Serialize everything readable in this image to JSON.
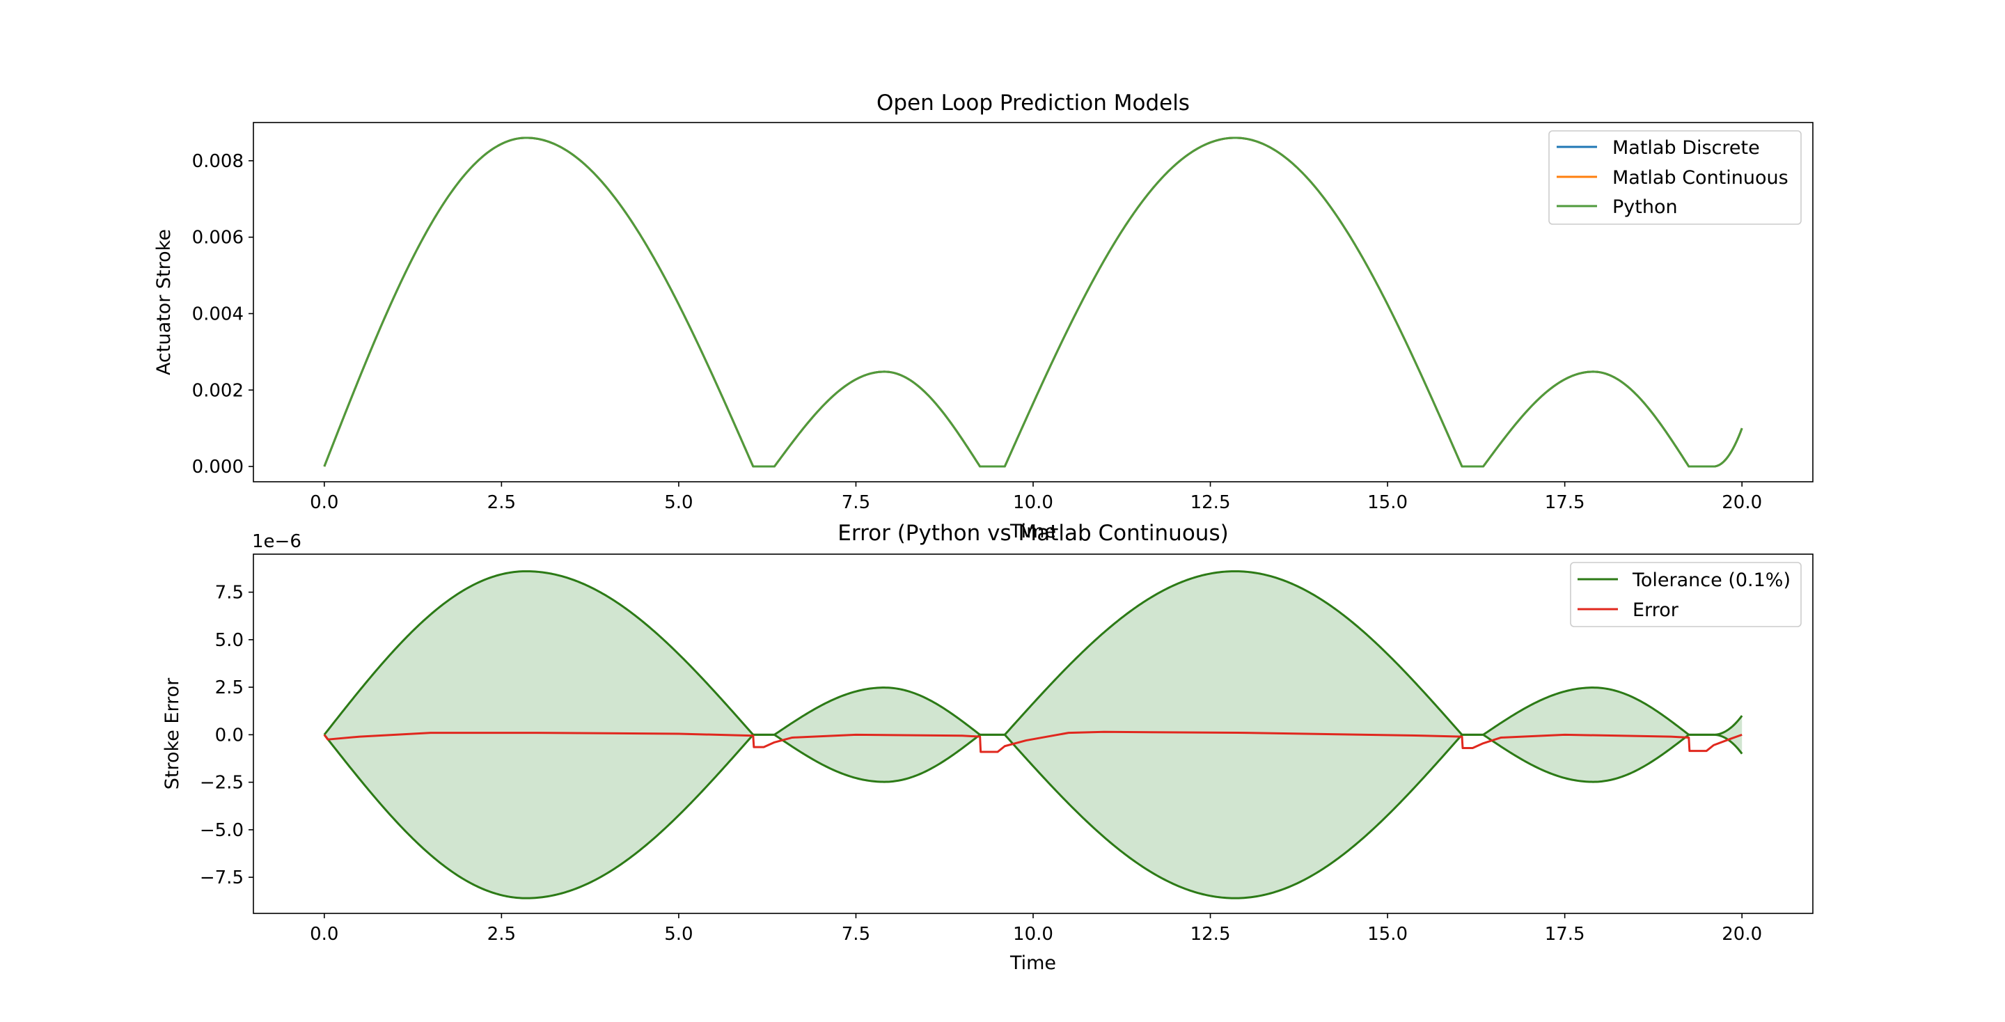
{
  "chart_data": [
    {
      "type": "line",
      "title": "Open Loop Prediction Models",
      "xlabel": "Time",
      "ylabel": "Actuator Stroke",
      "xlim": [
        -1.0,
        21.0
      ],
      "ylim": [
        -0.0004,
        0.009
      ],
      "xticks": [
        0.0,
        2.5,
        5.0,
        7.5,
        10.0,
        12.5,
        15.0,
        17.5,
        20.0
      ],
      "xtick_labels": [
        "0.0",
        "2.5",
        "5.0",
        "7.5",
        "10.0",
        "12.5",
        "15.0",
        "17.5",
        "20.0"
      ],
      "yticks": [
        0.0,
        0.002,
        0.004,
        0.006,
        0.008
      ],
      "ytick_labels": [
        "0.000",
        "0.002",
        "0.004",
        "0.006",
        "0.008"
      ],
      "grid": false,
      "legend": "top-right",
      "x_range": [
        0,
        20
      ],
      "series": [
        {
          "name": "Matlab Discrete",
          "color": "#1f77b4",
          "segments": [
            {
              "x": [
                0.0,
                6.05
              ],
              "shape": "arc",
              "peak_x": 2.85,
              "peak": 0.0086
            },
            {
              "x": [
                6.05,
                6.35
              ],
              "shape": "flat",
              "peak": 0.0
            },
            {
              "x": [
                6.35,
                9.25
              ],
              "shape": "arc",
              "peak_x": 7.9,
              "peak": 0.00248
            },
            {
              "x": [
                9.25,
                9.6
              ],
              "shape": "flat",
              "peak": 0.0
            },
            {
              "x": [
                9.6,
                16.05
              ],
              "shape": "arc",
              "peak_x": 12.85,
              "peak": 0.0086
            },
            {
              "x": [
                16.05,
                16.35
              ],
              "shape": "flat",
              "peak": 0.0
            },
            {
              "x": [
                16.35,
                19.25
              ],
              "shape": "arc",
              "peak_x": 17.9,
              "peak": 0.00248
            },
            {
              "x": [
                19.25,
                19.6
              ],
              "shape": "flat",
              "peak": 0.0
            },
            {
              "x": [
                19.6,
                20.0
              ],
              "shape": "rise",
              "end": 0.001
            }
          ]
        },
        {
          "name": "Matlab Continuous",
          "color": "#ff7f0e",
          "same_as": "Matlab Discrete"
        },
        {
          "name": "Python",
          "color": "#4f9a3c",
          "same_as": "Matlab Discrete"
        }
      ]
    },
    {
      "type": "area",
      "title": "Error (Python vs Matlab Continuous)",
      "xlabel": "Time",
      "ylabel": "Stroke Error",
      "offset_text": "1e−6",
      "xlim": [
        -1.0,
        21.0
      ],
      "ylim": [
        -9.4,
        9.5
      ],
      "xticks": [
        0.0,
        2.5,
        5.0,
        7.5,
        10.0,
        12.5,
        15.0,
        17.5,
        20.0
      ],
      "xtick_labels": [
        "0.0",
        "2.5",
        "5.0",
        "7.5",
        "10.0",
        "12.5",
        "15.0",
        "17.5",
        "20.0"
      ],
      "yticks": [
        -7.5,
        -5.0,
        -2.5,
        0.0,
        2.5,
        5.0,
        7.5
      ],
      "ytick_labels": [
        "−7.5",
        "−5.0",
        "−2.5",
        "0.0",
        "2.5",
        "5.0",
        "7.5"
      ],
      "grid": false,
      "legend": "top-right",
      "fill_color": "#d1e5d0",
      "series": [
        {
          "name": "Tolerance (0.1%)",
          "color": "#2c7a16",
          "definition": "±0.1% of stroke (upper and lower bound, shaded between)"
        },
        {
          "name": "Error",
          "color": "#e0281e",
          "points": [
            [
              0.0,
              0.0
            ],
            [
              0.05,
              -0.25
            ],
            [
              0.5,
              -0.1
            ],
            [
              1.5,
              0.1
            ],
            [
              3.0,
              0.1
            ],
            [
              5.0,
              0.05
            ],
            [
              6.05,
              -0.05
            ],
            [
              6.06,
              -0.65
            ],
            [
              6.2,
              -0.65
            ],
            [
              6.35,
              -0.4
            ],
            [
              6.6,
              -0.15
            ],
            [
              7.5,
              0.0
            ],
            [
              9.0,
              -0.05
            ],
            [
              9.25,
              -0.1
            ],
            [
              9.26,
              -0.9
            ],
            [
              9.5,
              -0.9
            ],
            [
              9.6,
              -0.6
            ],
            [
              9.9,
              -0.3
            ],
            [
              10.5,
              0.1
            ],
            [
              11.0,
              0.15
            ],
            [
              13.0,
              0.1
            ],
            [
              15.5,
              -0.05
            ],
            [
              16.05,
              -0.1
            ],
            [
              16.06,
              -0.7
            ],
            [
              16.2,
              -0.7
            ],
            [
              16.35,
              -0.45
            ],
            [
              16.6,
              -0.15
            ],
            [
              17.5,
              0.0
            ],
            [
              19.0,
              -0.1
            ],
            [
              19.25,
              -0.15
            ],
            [
              19.26,
              -0.85
            ],
            [
              19.5,
              -0.85
            ],
            [
              19.6,
              -0.55
            ],
            [
              19.85,
              -0.2
            ],
            [
              20.0,
              0.0
            ]
          ]
        }
      ]
    }
  ]
}
